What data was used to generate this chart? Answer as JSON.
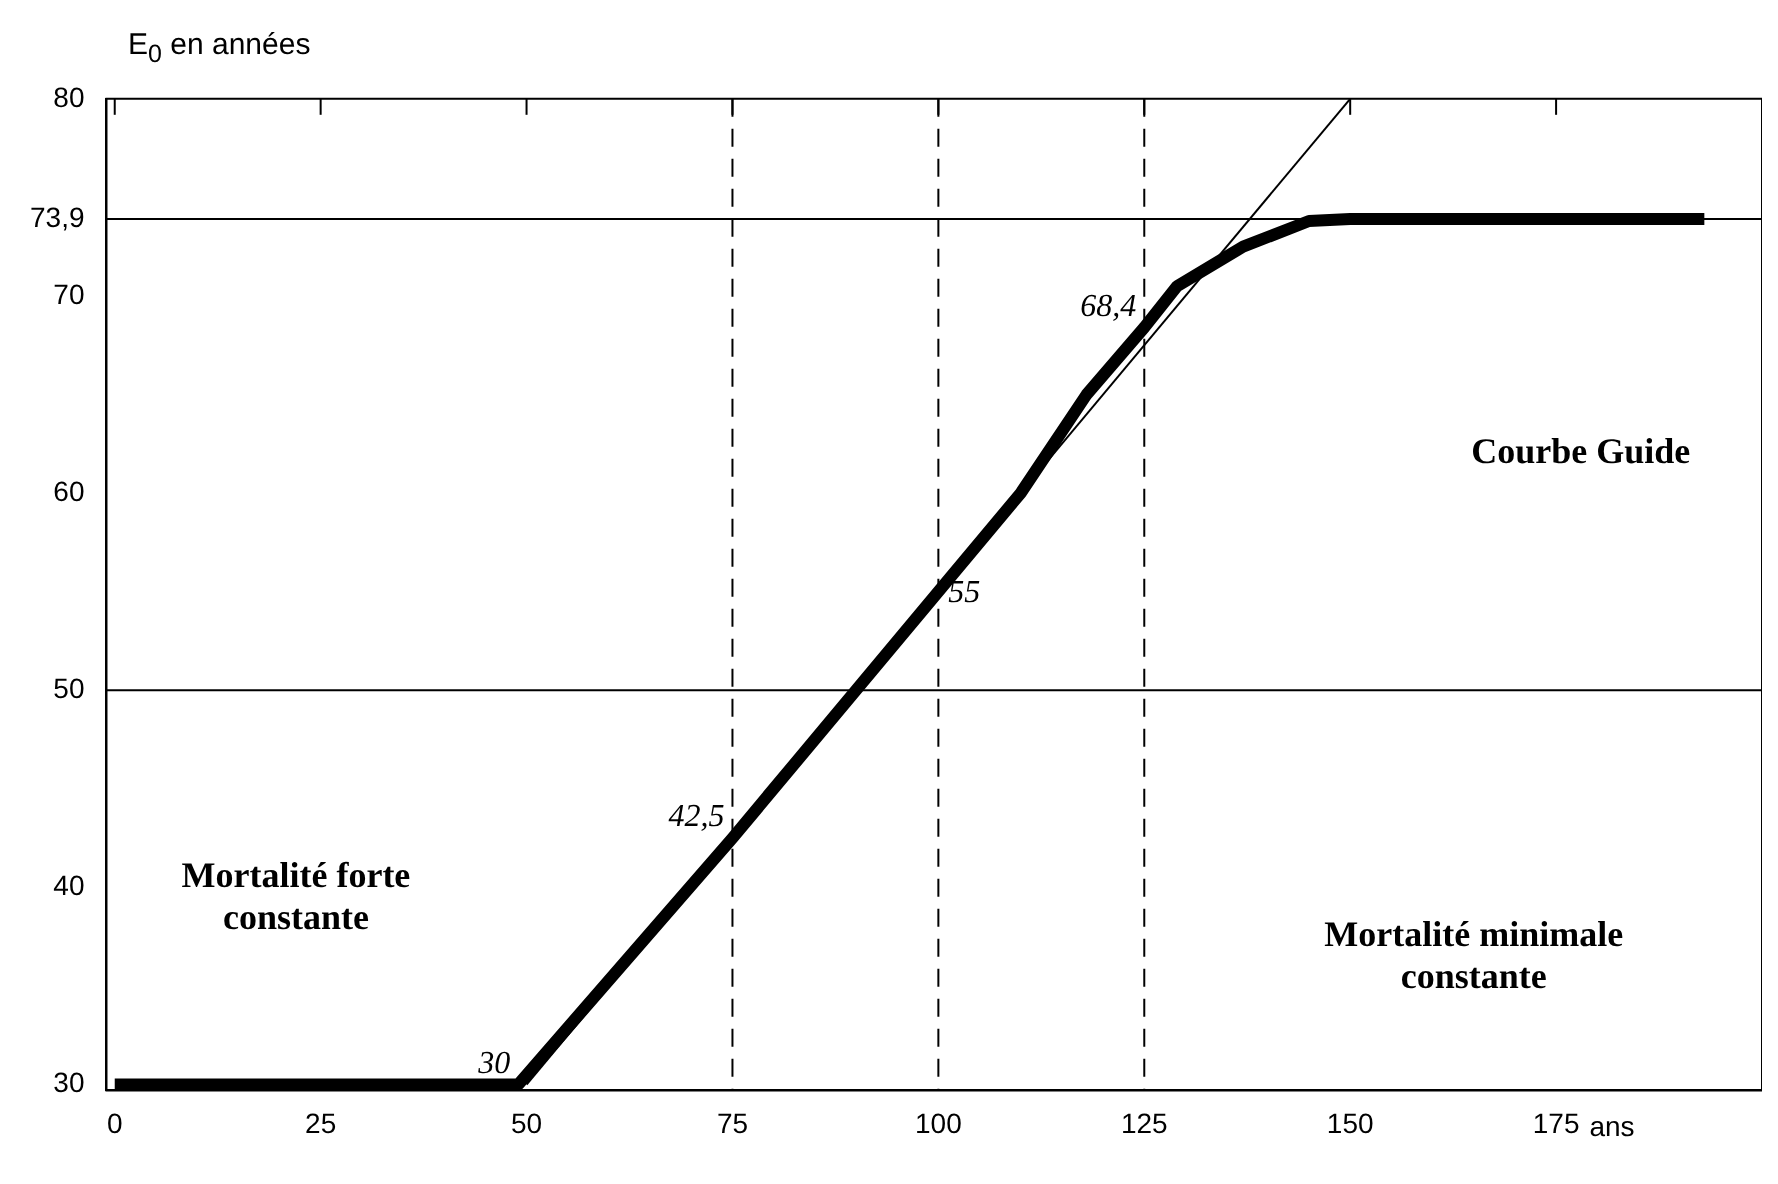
{
  "chart_data": {
    "type": "line",
    "xlabel": "ans",
    "ylabel": "E$_{0}$ en années",
    "xlim": [
      -1,
      200
    ],
    "ylim": [
      29.7,
      80
    ],
    "xticks": [
      0,
      25,
      50,
      75,
      100,
      125,
      150,
      175
    ],
    "yticks": [
      30,
      40,
      50,
      60,
      70,
      {
        "value": 73.9,
        "label": "73,9"
      },
      80
    ],
    "grid": false,
    "legend": false,
    "marker": "none",
    "series": [
      {
        "color": "#000000",
        "x": [
          0,
          49,
          75,
          100,
          110,
          118,
          125,
          129,
          137,
          145,
          150,
          193
        ],
        "values": [
          30,
          30,
          42.5,
          55,
          60,
          65,
          68.4,
          70.5,
          72.5,
          73.8,
          73.9,
          73.9
        ],
        "value_labels": [
          null,
          "30",
          "42,5",
          "55",
          null,
          null,
          "68,4",
          null,
          null,
          null,
          null,
          null
        ]
      },
      {
        "color": "#000000",
        "x": [
          50,
          150
        ],
        "values": [
          30,
          80
        ]
      }
    ],
    "ref_lines": [
      {
        "axis": "y",
        "value": 50,
        "color": "#000000",
        "line_style": "solid"
      },
      {
        "axis": "y",
        "value": 73.9,
        "color": "#000000",
        "line_style": "solid"
      },
      {
        "axis": "x",
        "value": 75,
        "color": "#000000",
        "line_style": "dashed"
      },
      {
        "axis": "x",
        "value": 100,
        "color": "#000000",
        "line_style": "dashed"
      },
      {
        "axis": "x",
        "value": 125,
        "color": "#000000",
        "line_style": "dashed"
      }
    ],
    "annotations": [
      "Mortalité forte constante",
      "Courbe Guide",
      "Mortalité minimale constante"
    ]
  }
}
